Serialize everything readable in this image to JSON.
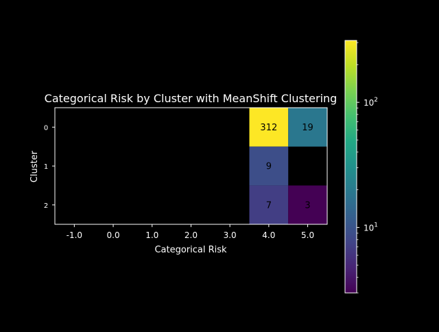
{
  "chart_data": {
    "type": "heatmap",
    "title": "Categorical Risk by Cluster with MeanShift Clustering",
    "xlabel": "Categorical Risk",
    "ylabel": "Cluster",
    "x_categories": [
      "-1.0",
      "0.0",
      "1.0",
      "2.0",
      "3.0",
      "4.0",
      "5.0"
    ],
    "y_categories": [
      "0",
      "1",
      "2"
    ],
    "cells": [
      {
        "x": "4.0",
        "y": "0",
        "value": 312,
        "label": "312"
      },
      {
        "x": "5.0",
        "y": "0",
        "value": 19,
        "label": "19"
      },
      {
        "x": "4.0",
        "y": "1",
        "value": 9,
        "label": "9"
      },
      {
        "x": "4.0",
        "y": "2",
        "value": 7,
        "label": "7"
      },
      {
        "x": "5.0",
        "y": "2",
        "value": 3,
        "label": "3"
      }
    ],
    "empty_cell_color": "#000000",
    "colorbar": {
      "scale": "log",
      "colormap": "viridis",
      "vmin": 3,
      "vmax": 312,
      "major_ticks": [
        {
          "value": 10,
          "label": "10",
          "exponent": "1"
        },
        {
          "value": 100,
          "label": "10",
          "exponent": "2"
        }
      ]
    },
    "colors": {
      "background": "#000000",
      "foreground": "#ffffff",
      "cell_text": "#000000"
    }
  }
}
